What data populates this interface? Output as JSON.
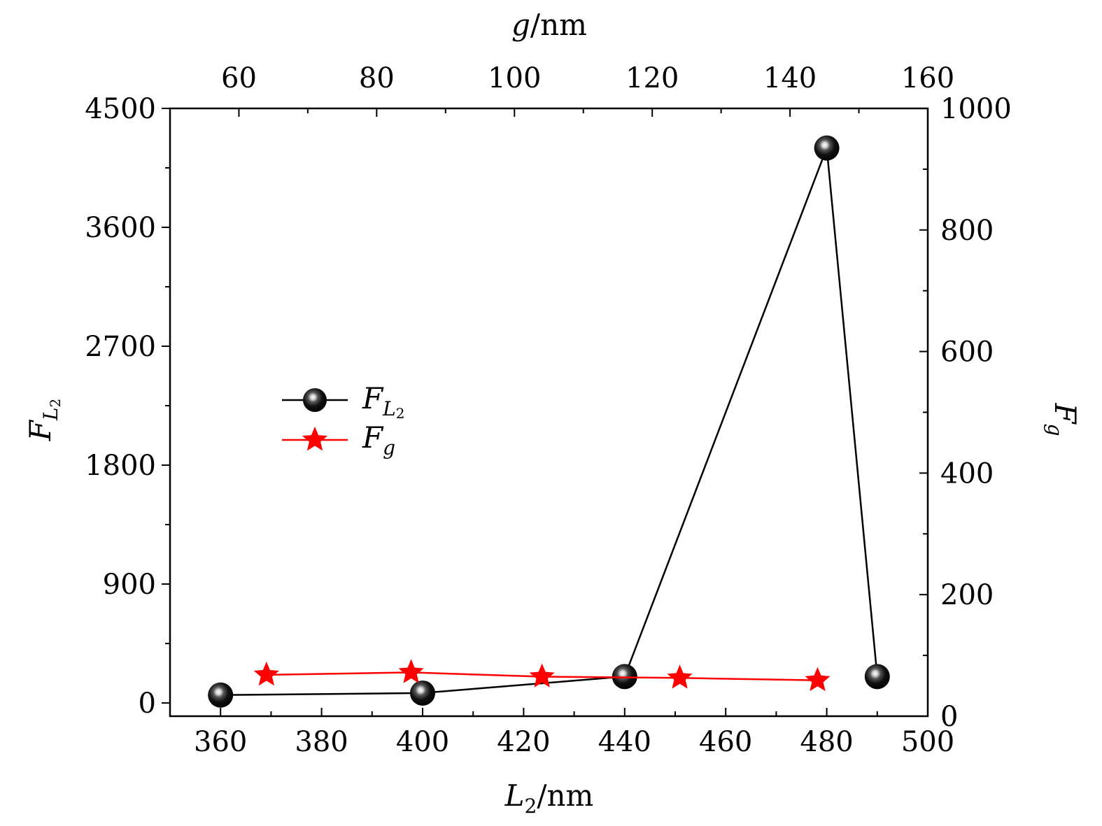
{
  "chart_data": {
    "type": "line",
    "xlabel_bottom": {
      "var": "L",
      "sub": "2",
      "unit": "/nm"
    },
    "xlabel_top": {
      "var": "g",
      "unit": "/nm"
    },
    "ylabel_left": {
      "var": "F",
      "sub": "L",
      "subsub": "2"
    },
    "ylabel_right": {
      "var": "F",
      "sub": "g"
    },
    "x_bottom": {
      "range": [
        350,
        500
      ],
      "ticks": [
        360,
        380,
        400,
        420,
        440,
        460,
        480,
        500
      ]
    },
    "x_top": {
      "range": [
        50,
        160
      ],
      "ticks": [
        60,
        80,
        100,
        120,
        140,
        160
      ]
    },
    "y_left": {
      "range": [
        -100,
        4500
      ],
      "ticks": [
        0,
        900,
        1800,
        2700,
        3600,
        4500
      ]
    },
    "y_right": {
      "range": [
        0,
        1000
      ],
      "ticks": [
        0,
        200,
        400,
        600,
        800,
        1000
      ]
    },
    "series": [
      {
        "name": "F_L2",
        "legend": {
          "var": "F",
          "sub": "L",
          "subsub": "2"
        },
        "axes": "bottom-left",
        "color": "#000000",
        "marker": "sphere",
        "points": [
          {
            "x": 360,
            "y": 60
          },
          {
            "x": 400,
            "y": 75
          },
          {
            "x": 440,
            "y": 200
          },
          {
            "x": 480,
            "y": 4200
          },
          {
            "x": 490,
            "y": 200
          }
        ]
      },
      {
        "name": "F_g",
        "legend": {
          "var": "F",
          "sub": "g"
        },
        "axes": "top-right",
        "color": "#ff0000",
        "marker": "star",
        "points": [
          {
            "x": 64,
            "y": 68
          },
          {
            "x": 85,
            "y": 72
          },
          {
            "x": 104,
            "y": 65
          },
          {
            "x": 124,
            "y": 63
          },
          {
            "x": 144,
            "y": 59
          }
        ]
      }
    ],
    "legend_position": "center-left",
    "grid": false
  }
}
